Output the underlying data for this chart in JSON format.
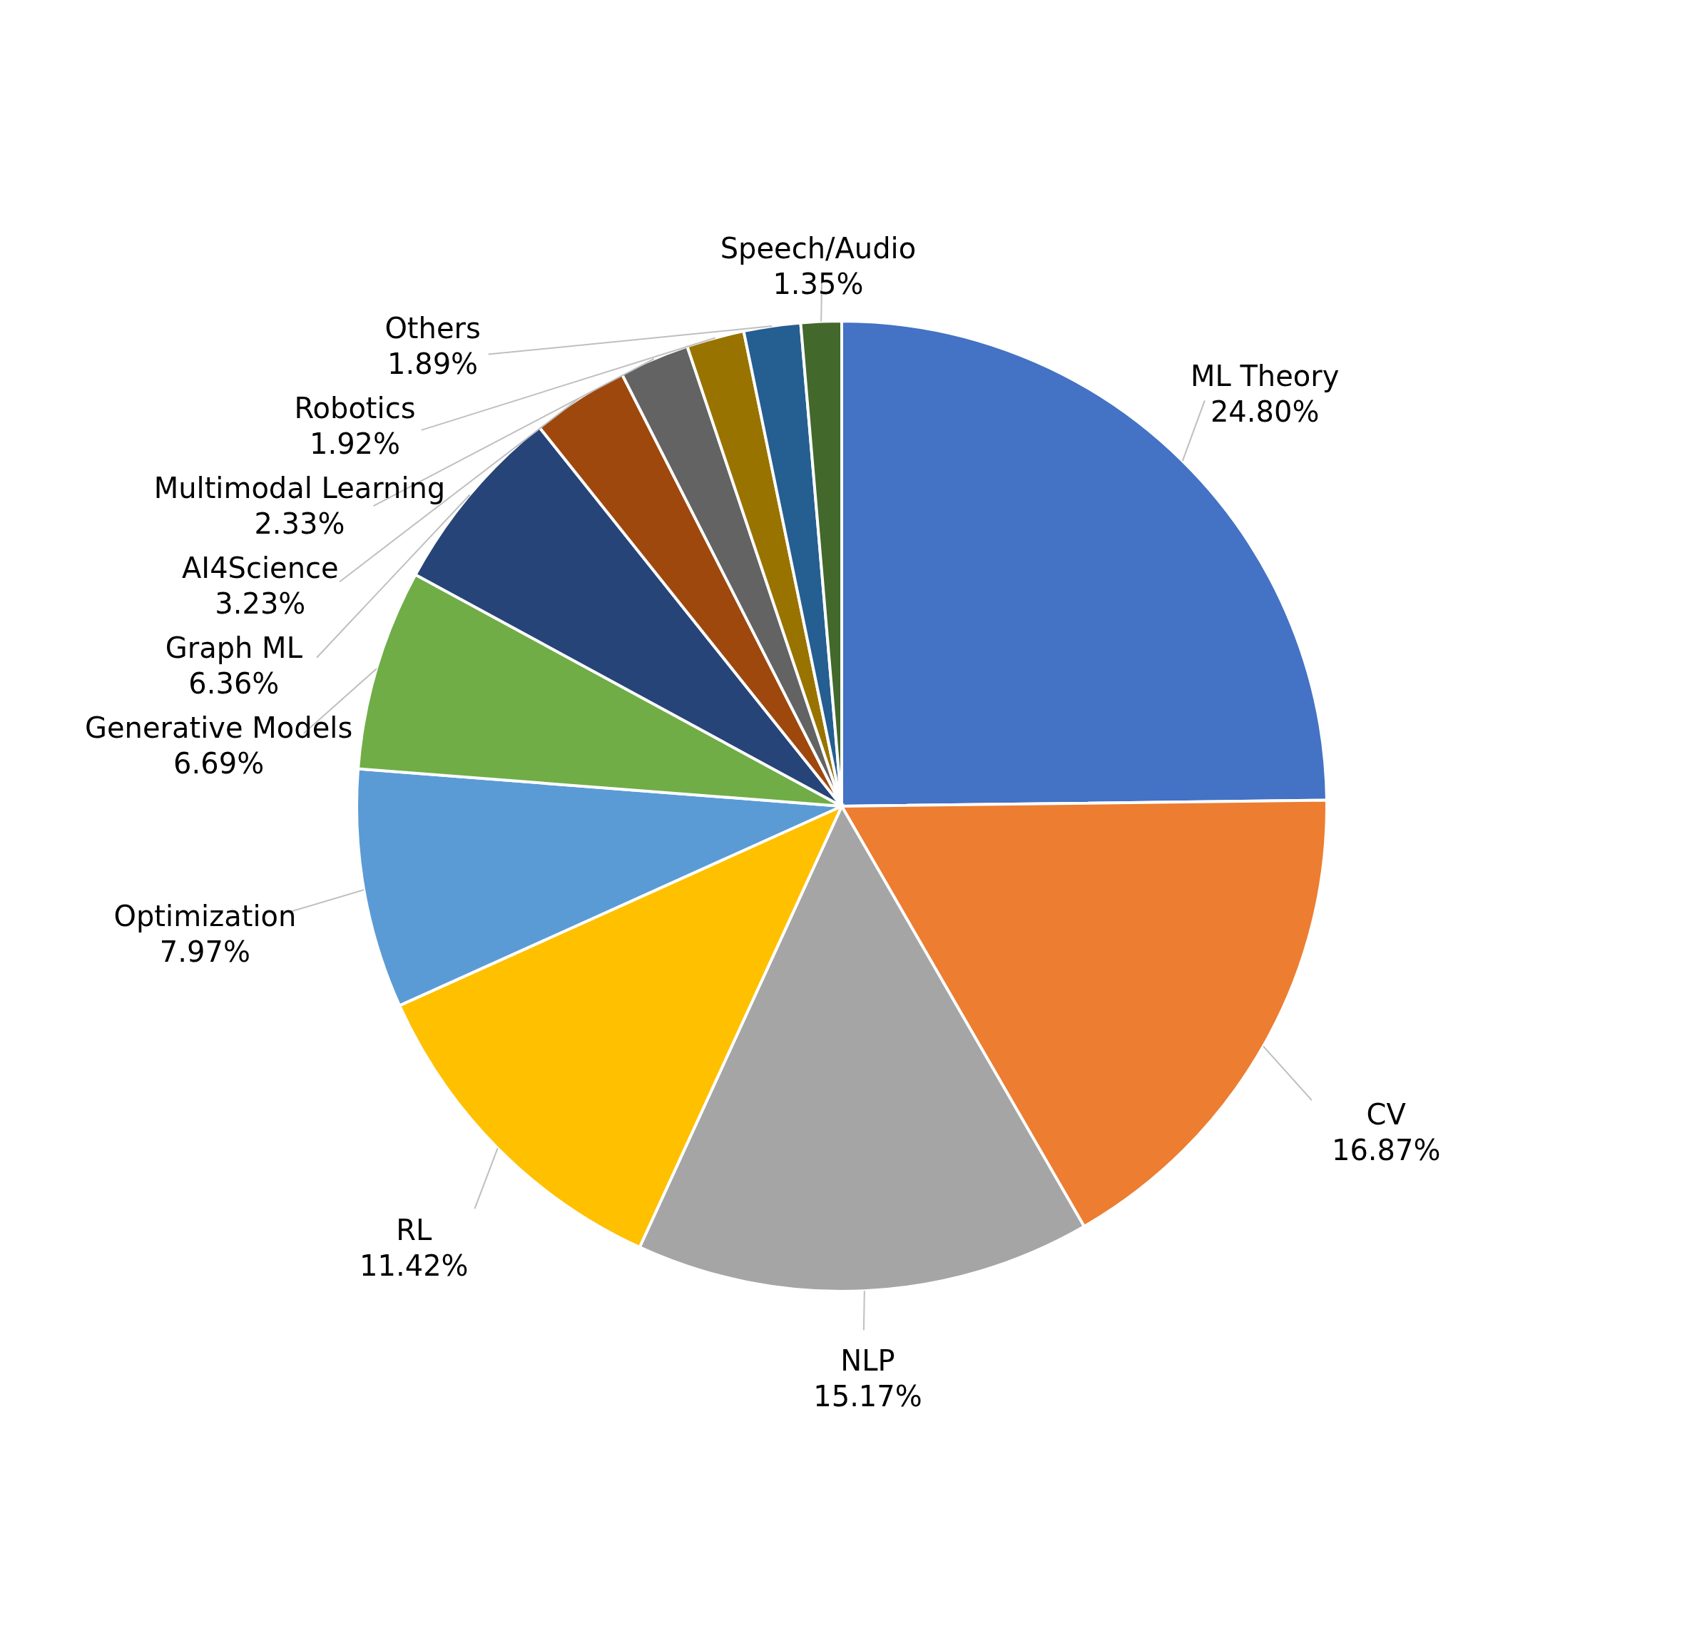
{
  "chart_data": {
    "type": "pie",
    "categories": [
      "ML Theory",
      "CV",
      "NLP",
      "RL",
      "Optimization",
      "Generative Models",
      "Graph ML",
      "AI4Science",
      "Multimodal Learning",
      "Robotics",
      "Others",
      "Speech/Audio"
    ],
    "values": [
      24.8,
      16.87,
      15.17,
      11.42,
      7.97,
      6.69,
      6.36,
      3.23,
      2.33,
      1.92,
      1.89,
      1.35
    ],
    "value_labels": [
      "24.80%",
      "16.87%",
      "15.17%",
      "11.42%",
      "7.97%",
      "6.69%",
      "6.36%",
      "3.23%",
      "2.33%",
      "1.92%",
      "1.89%",
      "1.35%"
    ],
    "colors": [
      "#4472c4",
      "#ed7d31",
      "#a5a5a5",
      "#ffc000",
      "#5b9bd5",
      "#70ad47",
      "#264478",
      "#9e480e",
      "#636363",
      "#997300",
      "#255e91",
      "#43682b"
    ],
    "legend": false
  }
}
